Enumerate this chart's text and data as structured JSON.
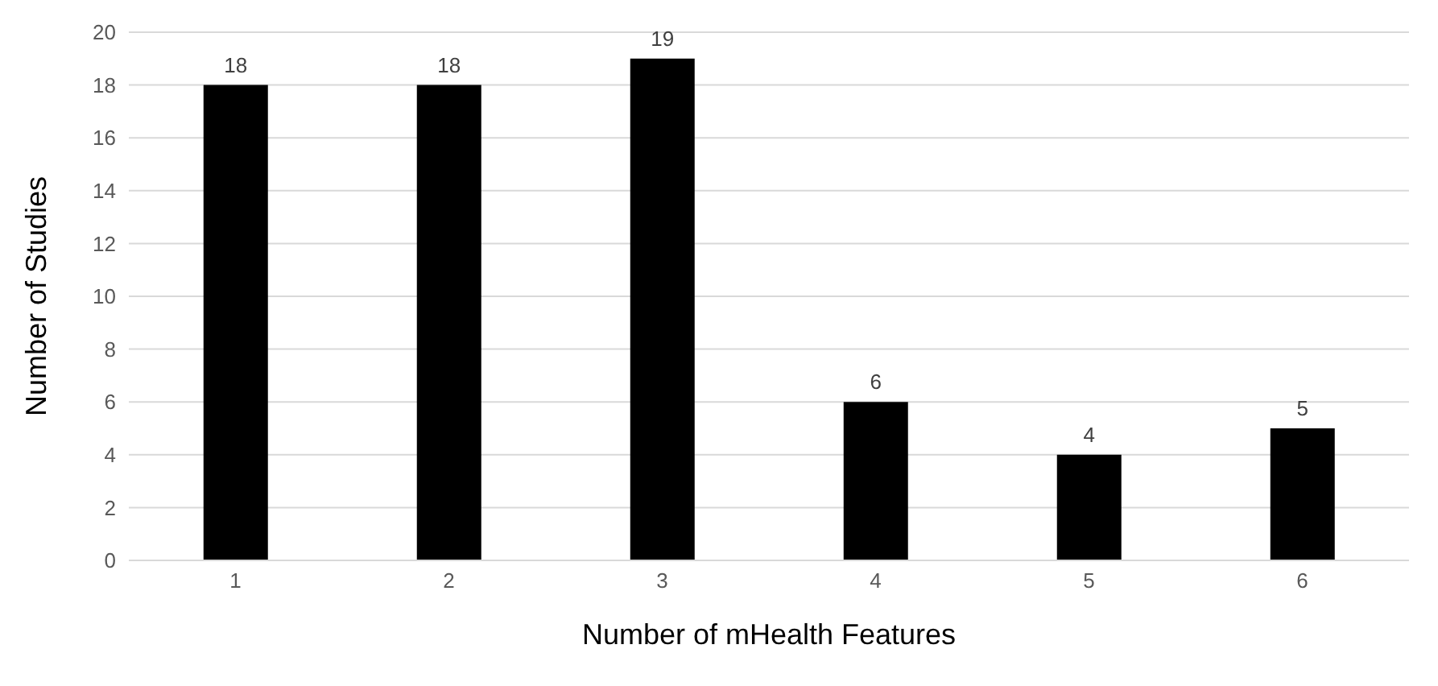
{
  "chart_data": {
    "type": "bar",
    "xlabel": "Number of mHealth Features",
    "ylabel": "Number of Studies",
    "categories": [
      "1",
      "2",
      "3",
      "4",
      "5",
      "6"
    ],
    "values": [
      18,
      18,
      19,
      6,
      4,
      5
    ],
    "color": "#000000",
    "ylim": [
      0,
      20
    ],
    "yticks": [
      0,
      2,
      4,
      6,
      8,
      10,
      12,
      14,
      16,
      18,
      20
    ],
    "grid": "y",
    "data_labels": true
  }
}
